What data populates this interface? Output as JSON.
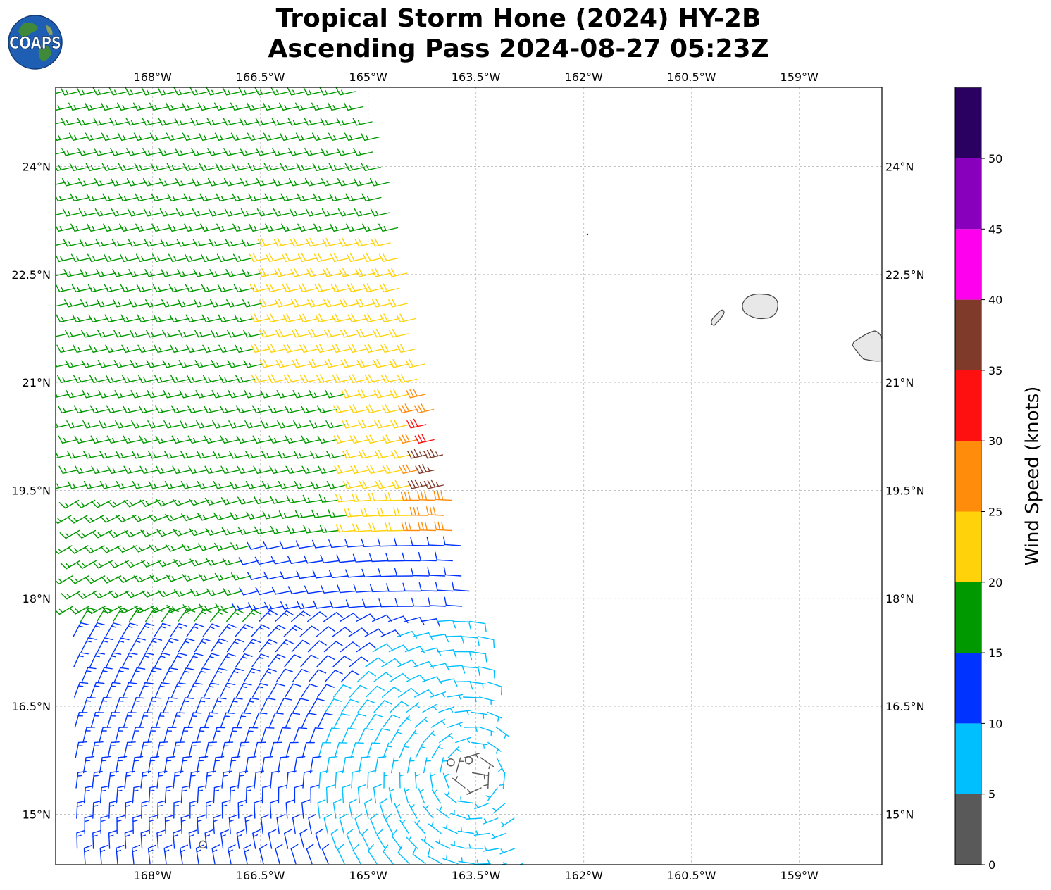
{
  "title": {
    "line1": "Tropical Storm Hone (2024) HY-2B",
    "line2": "Ascending Pass 2024-08-27 05:23Z"
  },
  "logo": {
    "text": "COAPS",
    "icon": "globe-logo-icon"
  },
  "map": {
    "lon_range": [
      -169.35,
      -157.85
    ],
    "lat_range": [
      14.3,
      25.1
    ],
    "lon_ticks": [
      {
        "value": -168.0,
        "label": "168°W"
      },
      {
        "value": -166.5,
        "label": "166.5°W"
      },
      {
        "value": -165.0,
        "label": "165°W"
      },
      {
        "value": -163.5,
        "label": "163.5°W"
      },
      {
        "value": -162.0,
        "label": "162°W"
      },
      {
        "value": -160.5,
        "label": "160.5°W"
      },
      {
        "value": -159.0,
        "label": "159°W"
      }
    ],
    "lat_ticks": [
      {
        "value": 15.0,
        "label": "15°N"
      },
      {
        "value": 16.5,
        "label": "16.5°N"
      },
      {
        "value": 18.0,
        "label": "18°N"
      },
      {
        "value": 19.5,
        "label": "19.5°N"
      },
      {
        "value": 21.0,
        "label": "21°N"
      },
      {
        "value": 22.5,
        "label": "22.5°N"
      },
      {
        "value": 24.0,
        "label": "24°N"
      }
    ],
    "gridlines": true,
    "land_color": "#e8e8e8",
    "coast_color": "#444444"
  },
  "colorbar": {
    "label": "Wind Speed (knots)",
    "ticks": [
      "0",
      "5",
      "10",
      "15",
      "20",
      "25",
      "30",
      "35",
      "40",
      "45",
      "50"
    ],
    "colors": [
      "#595959",
      "#00bfff",
      "#0033ff",
      "#009900",
      "#ffd20a",
      "#ff8c0a",
      "#ff1010",
      "#803a2a",
      "#ff00ee",
      "#8800bb",
      "#2a0060"
    ]
  },
  "wind_field": {
    "storm_center": {
      "lon": -163.55,
      "lat": 15.55
    },
    "calm_markers": [
      {
        "lon": -163.85,
        "lat": 15.72
      },
      {
        "lon": -163.6,
        "lat": 15.75
      },
      {
        "lon": -167.3,
        "lat": 14.58
      }
    ]
  }
}
